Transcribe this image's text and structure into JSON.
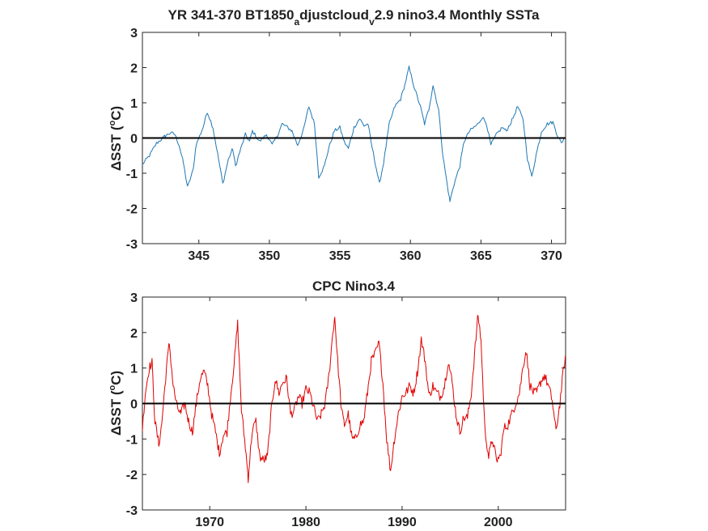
{
  "chart_data": [
    {
      "type": "line",
      "title_parts": [
        "YR 341-370 BT1850",
        "a",
        "djustcloud",
        "v",
        "2.9 nino3.4 Monthly SSTa"
      ],
      "ylabel": "ΔSST (°C)",
      "ylabel_parts": [
        "ΔSST (",
        "o",
        "C)"
      ],
      "xlim": [
        341,
        371
      ],
      "ylim": [
        -3,
        3
      ],
      "x_tick_values": [
        345,
        350,
        355,
        360,
        365,
        370
      ],
      "x_tick_labels": [
        "345",
        "350",
        "355",
        "360",
        "365",
        "370"
      ],
      "y_tick_values": [
        3,
        2,
        1,
        0,
        -1,
        -2,
        -3
      ],
      "y_tick_labels": [
        "3",
        "2",
        "1",
        "0",
        "-1",
        "-2",
        "-3"
      ],
      "grid": false,
      "zero_line": true,
      "series": [
        {
          "color": "#1f77b4",
          "keypoints": [
            [
              341.0,
              -0.75
            ],
            [
              341.5,
              -0.5
            ],
            [
              342.0,
              -0.15
            ],
            [
              342.6,
              0.05
            ],
            [
              343.0,
              0.15
            ],
            [
              343.3,
              0.1
            ],
            [
              343.6,
              -0.2
            ],
            [
              343.9,
              -0.7
            ],
            [
              344.2,
              -1.4
            ],
            [
              344.6,
              -0.9
            ],
            [
              344.8,
              -0.2
            ],
            [
              345.3,
              0.3
            ],
            [
              345.6,
              0.75
            ],
            [
              346.0,
              0.3
            ],
            [
              346.4,
              -0.6
            ],
            [
              346.7,
              -1.3
            ],
            [
              347.1,
              -0.6
            ],
            [
              347.4,
              -0.3
            ],
            [
              347.6,
              -0.8
            ],
            [
              347.9,
              -0.4
            ],
            [
              348.3,
              0.1
            ],
            [
              348.6,
              -0.1
            ],
            [
              348.8,
              0.2
            ],
            [
              349.3,
              -0.1
            ],
            [
              349.8,
              0.1
            ],
            [
              350.2,
              -0.2
            ],
            [
              350.6,
              0.1
            ],
            [
              350.9,
              0.4
            ],
            [
              351.3,
              0.3
            ],
            [
              351.6,
              0.2
            ],
            [
              352.0,
              -0.2
            ],
            [
              352.4,
              0.2
            ],
            [
              352.8,
              0.9
            ],
            [
              353.2,
              0.4
            ],
            [
              353.5,
              -1.1
            ],
            [
              353.9,
              -0.8
            ],
            [
              354.2,
              -0.3
            ],
            [
              354.6,
              0.2
            ],
            [
              355.0,
              0.3
            ],
            [
              355.3,
              -0.1
            ],
            [
              355.6,
              -0.3
            ],
            [
              356.0,
              0.3
            ],
            [
              356.4,
              0.55
            ],
            [
              356.7,
              0.35
            ],
            [
              357.0,
              0.4
            ],
            [
              357.2,
              -0.1
            ],
            [
              357.5,
              -0.7
            ],
            [
              357.8,
              -1.3
            ],
            [
              358.1,
              -0.7
            ],
            [
              358.5,
              0.4
            ],
            [
              358.9,
              0.9
            ],
            [
              359.3,
              1.1
            ],
            [
              359.6,
              1.5
            ],
            [
              359.9,
              2.0
            ],
            [
              360.3,
              1.4
            ],
            [
              360.7,
              0.9
            ],
            [
              361.0,
              0.4
            ],
            [
              361.3,
              0.8
            ],
            [
              361.6,
              1.5
            ],
            [
              362.0,
              0.8
            ],
            [
              362.3,
              -0.5
            ],
            [
              362.6,
              -1.3
            ],
            [
              362.8,
              -1.8
            ],
            [
              363.1,
              -1.3
            ],
            [
              363.5,
              -0.8
            ],
            [
              363.8,
              -0.1
            ],
            [
              364.2,
              0.2
            ],
            [
              364.5,
              0.3
            ],
            [
              364.8,
              0.4
            ],
            [
              365.1,
              0.6
            ],
            [
              365.4,
              0.4
            ],
            [
              365.7,
              -0.2
            ],
            [
              366.1,
              0.1
            ],
            [
              366.5,
              0.3
            ],
            [
              366.8,
              0.2
            ],
            [
              367.2,
              0.5
            ],
            [
              367.6,
              0.9
            ],
            [
              368.0,
              0.5
            ],
            [
              368.3,
              -0.6
            ],
            [
              368.6,
              -1.1
            ],
            [
              368.9,
              -0.5
            ],
            [
              369.3,
              0.2
            ],
            [
              369.7,
              0.4
            ],
            [
              370.1,
              0.45
            ],
            [
              370.4,
              0.1
            ],
            [
              370.7,
              -0.15
            ],
            [
              370.9,
              0.0
            ]
          ]
        }
      ]
    },
    {
      "type": "line",
      "title_parts": [
        "CPC Nino3.4"
      ],
      "ylabel": "ΔSST (°C)",
      "ylabel_parts": [
        "ΔSST (",
        "o",
        "C)"
      ],
      "xlim": [
        1963,
        2007
      ],
      "ylim": [
        -3,
        3
      ],
      "x_tick_values": [
        1970,
        1980,
        1990,
        2000
      ],
      "x_tick_labels": [
        "1970",
        "1980",
        "1990",
        "2000"
      ],
      "y_tick_values": [
        3,
        2,
        1,
        0,
        -1,
        -2,
        -3
      ],
      "y_tick_labels": [
        "3",
        "2",
        "1",
        "0",
        "-1",
        "-2",
        "-3"
      ],
      "grid": false,
      "zero_line": true,
      "series": [
        {
          "color": "#e00000",
          "keypoints": [
            [
              1963.0,
              -0.7
            ],
            [
              1963.3,
              0.3
            ],
            [
              1963.7,
              1.0
            ],
            [
              1964.0,
              1.15
            ],
            [
              1964.3,
              -0.5
            ],
            [
              1964.7,
              -1.15
            ],
            [
              1965.0,
              -0.6
            ],
            [
              1965.5,
              1.0
            ],
            [
              1965.8,
              1.7
            ],
            [
              1966.2,
              0.5
            ],
            [
              1966.6,
              -0.1
            ],
            [
              1967.0,
              -0.3
            ],
            [
              1967.4,
              0.0
            ],
            [
              1967.8,
              -0.5
            ],
            [
              1968.2,
              -0.8
            ],
            [
              1968.6,
              0.0
            ],
            [
              1969.0,
              0.7
            ],
            [
              1969.4,
              0.9
            ],
            [
              1969.8,
              0.5
            ],
            [
              1970.2,
              -0.3
            ],
            [
              1970.6,
              -0.8
            ],
            [
              1971.0,
              -1.4
            ],
            [
              1971.4,
              -0.9
            ],
            [
              1971.8,
              -0.8
            ],
            [
              1972.2,
              0.3
            ],
            [
              1972.6,
              1.3
            ],
            [
              1972.9,
              2.25
            ],
            [
              1973.3,
              -0.2
            ],
            [
              1973.7,
              -1.2
            ],
            [
              1974.0,
              -2.1
            ],
            [
              1974.4,
              -0.8
            ],
            [
              1974.8,
              -0.5
            ],
            [
              1975.2,
              -1.5
            ],
            [
              1975.6,
              -1.6
            ],
            [
              1976.0,
              -1.5
            ],
            [
              1976.4,
              -0.2
            ],
            [
              1976.8,
              0.7
            ],
            [
              1977.2,
              0.3
            ],
            [
              1977.6,
              0.6
            ],
            [
              1978.0,
              0.7
            ],
            [
              1978.4,
              -0.3
            ],
            [
              1978.8,
              -0.2
            ],
            [
              1979.2,
              0.2
            ],
            [
              1979.6,
              0.0
            ],
            [
              1980.0,
              0.4
            ],
            [
              1980.4,
              0.3
            ],
            [
              1980.8,
              -0.1
            ],
            [
              1981.2,
              -0.5
            ],
            [
              1981.6,
              -0.3
            ],
            [
              1982.0,
              0.0
            ],
            [
              1982.4,
              0.8
            ],
            [
              1982.8,
              2.0
            ],
            [
              1983.0,
              2.45
            ],
            [
              1983.3,
              1.2
            ],
            [
              1983.7,
              -0.2
            ],
            [
              1984.0,
              -0.6
            ],
            [
              1984.4,
              -0.3
            ],
            [
              1984.8,
              -1.0
            ],
            [
              1985.2,
              -1.0
            ],
            [
              1985.6,
              -0.6
            ],
            [
              1986.0,
              -0.5
            ],
            [
              1986.4,
              0.3
            ],
            [
              1986.8,
              1.2
            ],
            [
              1987.2,
              1.4
            ],
            [
              1987.6,
              1.7
            ],
            [
              1988.0,
              0.6
            ],
            [
              1988.4,
              -1.0
            ],
            [
              1988.8,
              -1.9
            ],
            [
              1989.2,
              -1.0
            ],
            [
              1989.6,
              -0.3
            ],
            [
              1990.0,
              0.2
            ],
            [
              1990.4,
              0.3
            ],
            [
              1990.8,
              0.5
            ],
            [
              1991.2,
              0.3
            ],
            [
              1991.6,
              0.9
            ],
            [
              1992.0,
              1.8
            ],
            [
              1992.4,
              1.2
            ],
            [
              1992.8,
              0.2
            ],
            [
              1993.2,
              0.5
            ],
            [
              1993.6,
              0.3
            ],
            [
              1994.0,
              0.2
            ],
            [
              1994.4,
              0.5
            ],
            [
              1994.8,
              1.2
            ],
            [
              1995.2,
              0.6
            ],
            [
              1995.6,
              -0.3
            ],
            [
              1996.0,
              -0.8
            ],
            [
              1996.4,
              -0.4
            ],
            [
              1996.8,
              -0.4
            ],
            [
              1997.2,
              0.3
            ],
            [
              1997.6,
              1.6
            ],
            [
              1997.9,
              2.5
            ],
            [
              1998.2,
              1.8
            ],
            [
              1998.6,
              -0.7
            ],
            [
              1999.0,
              -1.5
            ],
            [
              1999.4,
              -1.0
            ],
            [
              1999.8,
              -1.6
            ],
            [
              2000.2,
              -1.5
            ],
            [
              2000.6,
              -0.7
            ],
            [
              2001.0,
              -0.6
            ],
            [
              2001.4,
              -0.3
            ],
            [
              2001.8,
              0.0
            ],
            [
              2002.2,
              0.3
            ],
            [
              2002.6,
              1.1
            ],
            [
              2002.9,
              1.5
            ],
            [
              2003.3,
              0.5
            ],
            [
              2003.7,
              0.3
            ],
            [
              2004.0,
              0.3
            ],
            [
              2004.4,
              0.6
            ],
            [
              2004.8,
              0.8
            ],
            [
              2005.2,
              0.5
            ],
            [
              2005.6,
              0.1
            ],
            [
              2006.0,
              -0.8
            ],
            [
              2006.4,
              0.0
            ],
            [
              2006.8,
              1.0
            ],
            [
              2007.0,
              1.3
            ]
          ]
        }
      ]
    }
  ]
}
